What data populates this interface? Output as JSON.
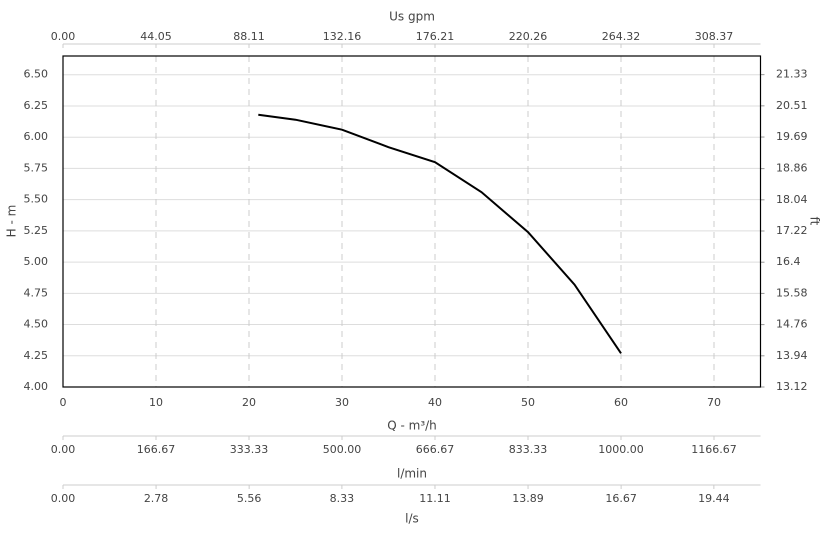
{
  "chart_data": {
    "type": "line",
    "xlabel": "Q - m³/h",
    "ylabel": "H - m",
    "y2label": "ft",
    "xlim": [
      0,
      75
    ],
    "xticks": [
      0,
      10,
      20,
      30,
      40,
      50,
      60,
      70
    ],
    "ylim": [
      4,
      6.65
    ],
    "yticks": [
      {
        "value": 4,
        "label": "4.00"
      },
      4.25,
      {
        "value": 4.5,
        "label": "4.50"
      },
      4.75,
      {
        "value": 5,
        "label": "5.00"
      },
      5.25,
      {
        "value": 5.5,
        "label": "5.50"
      },
      5.75,
      {
        "value": 6,
        "label": "6.00"
      },
      6.25,
      {
        "value": 6.5,
        "label": "6.50"
      }
    ],
    "y2lim": [
      13.12,
      21.82
    ],
    "y2ticks": [
      13.12,
      13.94,
      14.76,
      15.58,
      16.4,
      17.22,
      18.04,
      18.86,
      19.69,
      20.51,
      21.33
    ],
    "top_axis": {
      "label": "Us gpm",
      "lim": [
        0,
        330.4
      ],
      "ticks": [
        {
          "value": 0,
          "label": "0.00"
        },
        44.05,
        88.11,
        132.16,
        176.21,
        220.26,
        264.32,
        308.37
      ]
    },
    "bottom_axes": [
      {
        "label": "l/min",
        "lim": [
          0,
          1250
        ],
        "ticks": [
          {
            "value": 0,
            "label": "0.00"
          },
          166.67,
          333.33,
          {
            "value": 500,
            "label": "500.00"
          },
          666.67,
          833.33,
          {
            "value": 1000,
            "label": "1000.00"
          },
          1166.67
        ]
      },
      {
        "label": "l/s",
        "lim": [
          0,
          20.833
        ],
        "ticks": [
          {
            "value": 0,
            "label": "0.00"
          },
          2.78,
          5.56,
          8.33,
          11.11,
          13.89,
          16.67,
          19.44
        ]
      }
    ],
    "grid": true,
    "x": [
      21,
      25,
      30,
      35,
      40,
      45,
      50,
      55,
      60
    ],
    "series": [
      {
        "color": "#000000",
        "values": [
          6.18,
          6.14,
          6.06,
          5.92,
          5.8,
          5.56,
          5.24,
          4.82,
          4.27
        ]
      }
    ]
  }
}
